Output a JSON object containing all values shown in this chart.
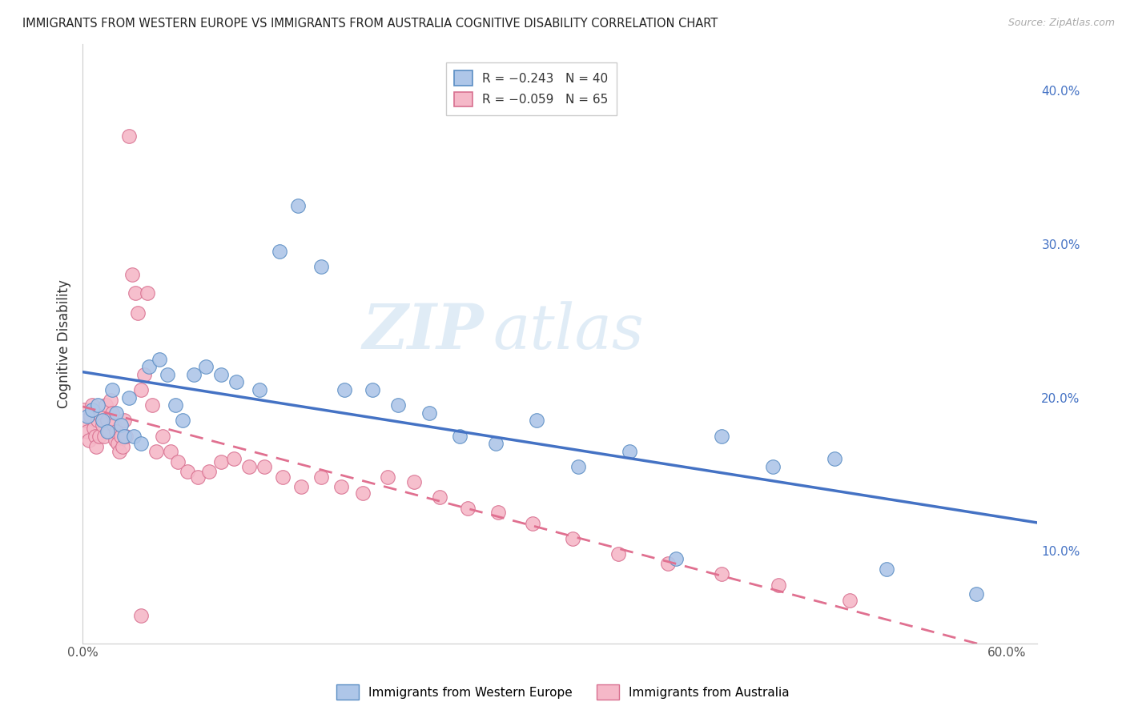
{
  "title": "IMMIGRANTS FROM WESTERN EUROPE VS IMMIGRANTS FROM AUSTRALIA COGNITIVE DISABILITY CORRELATION CHART",
  "source": "Source: ZipAtlas.com",
  "ylabel": "Cognitive Disability",
  "watermark_zip": "ZIP",
  "watermark_atlas": "atlas",
  "legend": {
    "blue_label": "R = −0.243   N = 40",
    "pink_label": "R = −0.059   N = 65",
    "bottom_blue": "Immigrants from Western Europe",
    "bottom_pink": "Immigrants from Australia"
  },
  "xlim": [
    0.0,
    0.62
  ],
  "ylim": [
    0.04,
    0.43
  ],
  "right_yticks": [
    0.1,
    0.2,
    0.3,
    0.4
  ],
  "right_yticklabels": [
    "10.0%",
    "20.0%",
    "30.0%",
    "40.0%"
  ],
  "blue_color": "#aec6e8",
  "pink_color": "#f5b8c8",
  "blue_edge_color": "#5b8ec4",
  "pink_edge_color": "#d87090",
  "blue_line_color": "#4472c4",
  "pink_line_color": "#e07090",
  "background_color": "#ffffff",
  "grid_color": "#d8d8d8",
  "blue_points_x": [
    0.003,
    0.006,
    0.01,
    0.013,
    0.016,
    0.019,
    0.022,
    0.025,
    0.027,
    0.03,
    0.033,
    0.038,
    0.043,
    0.05,
    0.055,
    0.06,
    0.065,
    0.072,
    0.08,
    0.09,
    0.1,
    0.115,
    0.128,
    0.14,
    0.155,
    0.17,
    0.188,
    0.205,
    0.225,
    0.245,
    0.268,
    0.295,
    0.322,
    0.355,
    0.385,
    0.415,
    0.448,
    0.488,
    0.522,
    0.58
  ],
  "blue_points_y": [
    0.188,
    0.192,
    0.195,
    0.185,
    0.178,
    0.205,
    0.19,
    0.182,
    0.175,
    0.2,
    0.175,
    0.17,
    0.22,
    0.225,
    0.215,
    0.195,
    0.185,
    0.215,
    0.22,
    0.215,
    0.21,
    0.205,
    0.295,
    0.325,
    0.285,
    0.205,
    0.205,
    0.195,
    0.19,
    0.175,
    0.17,
    0.185,
    0.155,
    0.165,
    0.095,
    0.175,
    0.155,
    0.16,
    0.088,
    0.072
  ],
  "pink_points_x": [
    0.001,
    0.002,
    0.003,
    0.004,
    0.005,
    0.006,
    0.007,
    0.008,
    0.009,
    0.01,
    0.011,
    0.012,
    0.013,
    0.014,
    0.015,
    0.016,
    0.017,
    0.018,
    0.019,
    0.02,
    0.021,
    0.022,
    0.023,
    0.024,
    0.025,
    0.026,
    0.027,
    0.028,
    0.03,
    0.032,
    0.034,
    0.036,
    0.038,
    0.04,
    0.042,
    0.045,
    0.048,
    0.052,
    0.057,
    0.062,
    0.068,
    0.075,
    0.082,
    0.09,
    0.098,
    0.108,
    0.118,
    0.13,
    0.142,
    0.155,
    0.168,
    0.182,
    0.198,
    0.215,
    0.232,
    0.25,
    0.27,
    0.292,
    0.318,
    0.348,
    0.38,
    0.415,
    0.452,
    0.498,
    0.038
  ],
  "pink_points_y": [
    0.192,
    0.185,
    0.178,
    0.172,
    0.188,
    0.195,
    0.18,
    0.175,
    0.168,
    0.185,
    0.175,
    0.188,
    0.182,
    0.175,
    0.195,
    0.185,
    0.178,
    0.198,
    0.19,
    0.182,
    0.172,
    0.178,
    0.17,
    0.165,
    0.175,
    0.168,
    0.185,
    0.175,
    0.37,
    0.28,
    0.268,
    0.255,
    0.205,
    0.215,
    0.268,
    0.195,
    0.165,
    0.175,
    0.165,
    0.158,
    0.152,
    0.148,
    0.152,
    0.158,
    0.16,
    0.155,
    0.155,
    0.148,
    0.142,
    0.148,
    0.142,
    0.138,
    0.148,
    0.145,
    0.135,
    0.128,
    0.125,
    0.118,
    0.108,
    0.098,
    0.092,
    0.085,
    0.078,
    0.068,
    0.058
  ]
}
